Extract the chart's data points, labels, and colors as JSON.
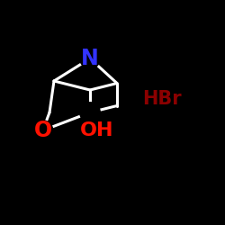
{
  "background_color": "#000000",
  "N_color": "#3333ff",
  "O_color": "#ff1100",
  "OH_color": "#ff1100",
  "HBr_color": "#8b0000",
  "bond_color": "#ffffff",
  "bond_width": 2.2,
  "figsize": [
    2.5,
    2.5
  ],
  "dpi": 100,
  "N_label": "N",
  "O_label": "O",
  "OH_label": "OH",
  "HBr_label": "HBr",
  "N_fontsize": 17,
  "O_fontsize": 17,
  "OH_fontsize": 16,
  "HBr_fontsize": 15
}
